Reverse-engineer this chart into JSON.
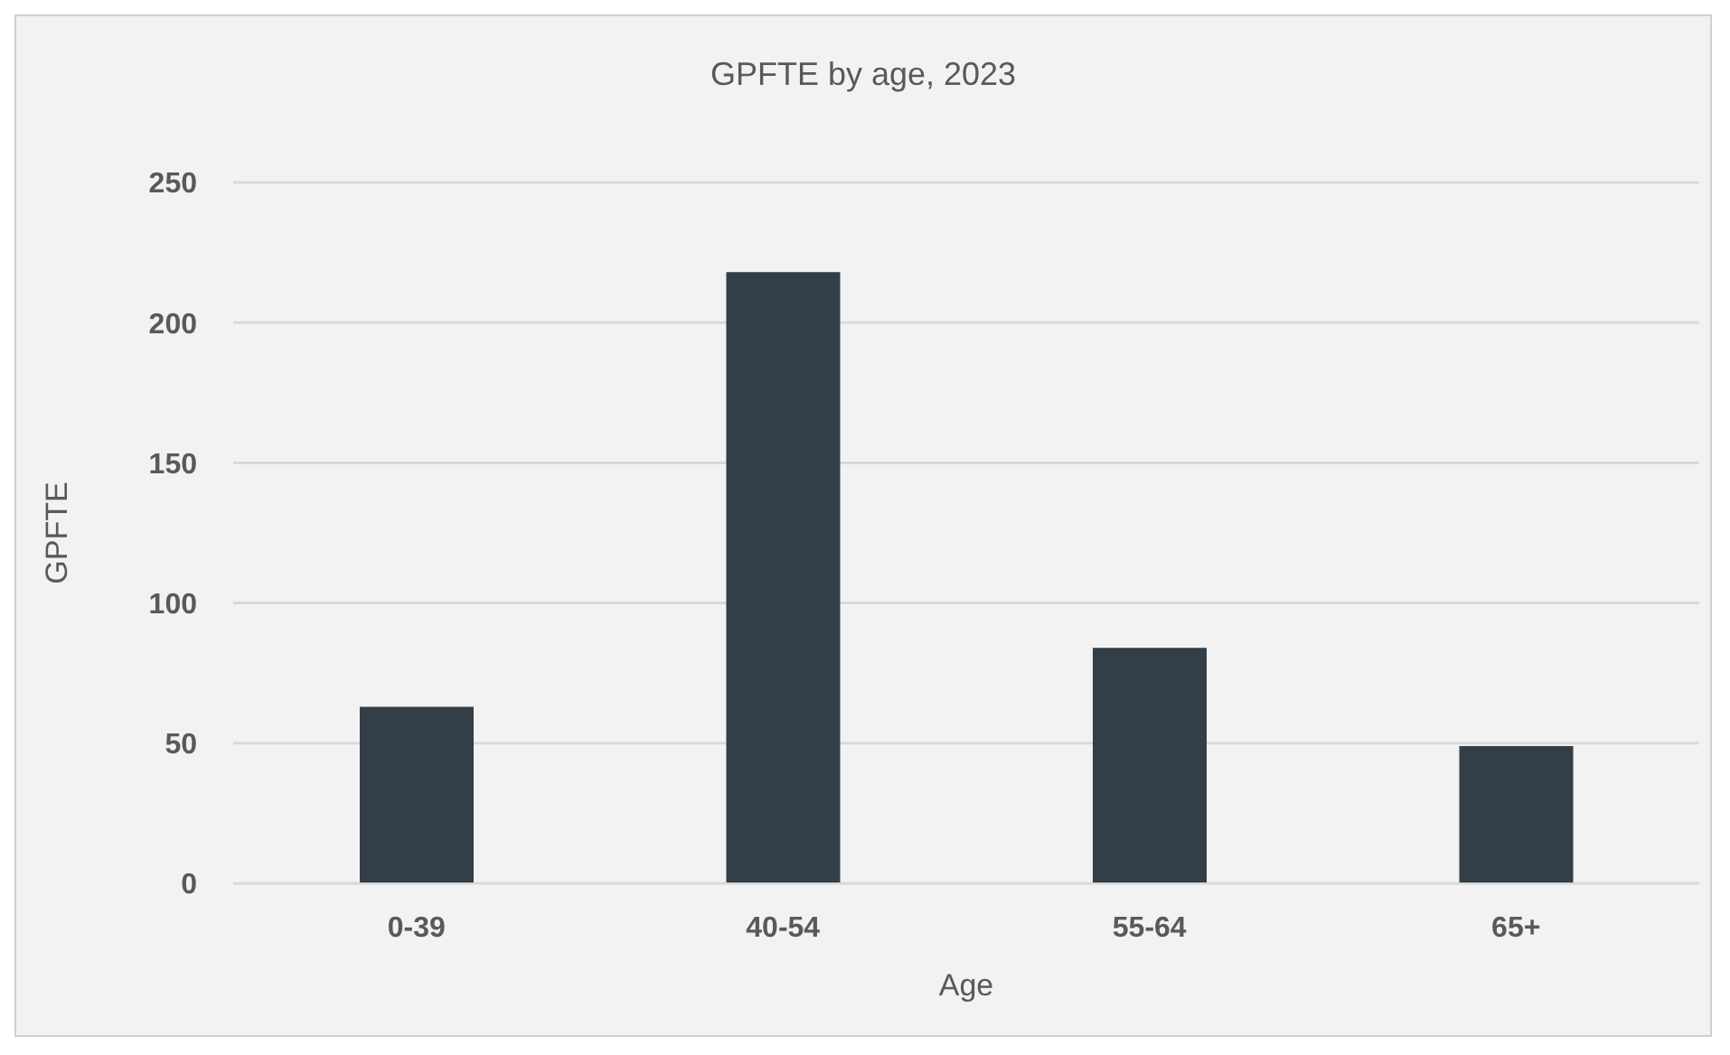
{
  "chart_data": {
    "type": "bar",
    "title": "GPFTE by age, 2023",
    "xlabel": "Age",
    "ylabel": "GPFTE",
    "categories": [
      "0-39",
      "40-54",
      "55-64",
      "65+"
    ],
    "values": [
      63,
      218,
      84,
      49
    ],
    "color": "#323e48",
    "ylim": [
      0,
      250
    ],
    "yticks": [
      0,
      50,
      100,
      150,
      200,
      250
    ],
    "grid": "y"
  }
}
